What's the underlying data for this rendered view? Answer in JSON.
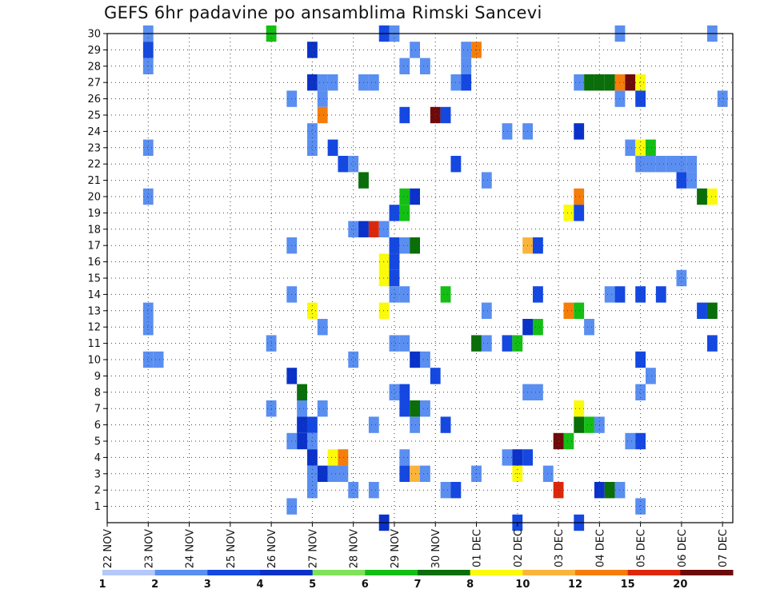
{
  "chart_data": {
    "type": "heatmap",
    "title": "GEFS 6hr padavine po ansamblima Rimski Sancevi",
    "y_ticks": [
      1,
      2,
      3,
      4,
      5,
      6,
      7,
      8,
      9,
      10,
      11,
      12,
      13,
      14,
      15,
      16,
      17,
      18,
      19,
      20,
      21,
      22,
      23,
      24,
      25,
      26,
      27,
      28,
      29,
      30
    ],
    "y_range": [
      0,
      30
    ],
    "x_ticks": [
      "22 NOV",
      "23 NOV",
      "24 NOV",
      "25 NOV",
      "26 NOV",
      "27 NOV",
      "28 NOV",
      "29 NOV",
      "30 NOV",
      "01 DEC",
      "02 DEC",
      "03 DEC",
      "04 DEC",
      "05 DEC",
      "06 DEC",
      "07 DEC"
    ],
    "x_range_days": [
      0,
      15.25
    ],
    "grid": true,
    "colorbar": {
      "labels": [
        "1",
        "2",
        "3",
        "4",
        "5",
        "6",
        "7",
        "8",
        "10",
        "12",
        "15",
        "20"
      ],
      "colors": [
        "#b4c8fa",
        "#5a8ef0",
        "#1448e0",
        "#0a32c8",
        "#7fe35a",
        "#14be14",
        "#0a6e0a",
        "#fafa0a",
        "#fab43c",
        "#f57d0a",
        "#dc280a",
        "#6e0a0a"
      ]
    },
    "cells": [
      [
        1,
        30,
        1
      ],
      [
        4,
        30,
        5
      ],
      [
        6.75,
        30,
        2
      ],
      [
        7,
        30,
        1
      ],
      [
        12.5,
        30,
        1
      ],
      [
        14.75,
        30,
        1
      ],
      [
        1,
        29,
        2
      ],
      [
        5,
        29,
        3
      ],
      [
        7.5,
        29,
        1
      ],
      [
        8.75,
        29,
        1
      ],
      [
        9,
        29,
        9
      ],
      [
        1,
        28,
        1
      ],
      [
        7.25,
        28,
        1
      ],
      [
        7.75,
        28,
        1
      ],
      [
        8.75,
        28,
        1
      ],
      [
        5,
        27,
        3
      ],
      [
        5.25,
        27,
        1
      ],
      [
        5.5,
        27,
        1
      ],
      [
        6.25,
        27,
        1
      ],
      [
        6.5,
        27,
        1
      ],
      [
        8.5,
        27,
        1
      ],
      [
        8.75,
        27,
        2
      ],
      [
        11.5,
        27,
        1
      ],
      [
        11.75,
        27,
        6
      ],
      [
        12,
        27,
        6
      ],
      [
        12.25,
        27,
        6
      ],
      [
        12.5,
        27,
        9
      ],
      [
        12.75,
        27,
        11
      ],
      [
        13,
        27,
        7
      ],
      [
        4.5,
        26,
        1
      ],
      [
        5.25,
        26,
        1
      ],
      [
        12.5,
        26,
        1
      ],
      [
        13,
        26,
        2
      ],
      [
        15,
        26,
        1
      ],
      [
        5.25,
        25,
        9
      ],
      [
        7.25,
        25,
        2
      ],
      [
        8,
        25,
        11
      ],
      [
        8.25,
        25,
        2
      ],
      [
        5,
        24,
        1
      ],
      [
        9.75,
        24,
        1
      ],
      [
        10.25,
        24,
        1
      ],
      [
        11.5,
        24,
        3
      ],
      [
        1,
        23,
        1
      ],
      [
        5,
        23,
        1
      ],
      [
        5.5,
        23,
        2
      ],
      [
        12.75,
        23,
        1
      ],
      [
        13,
        23,
        7
      ],
      [
        13.25,
        23,
        5
      ],
      [
        5.75,
        22,
        2
      ],
      [
        6,
        22,
        1
      ],
      [
        8.5,
        22,
        2
      ],
      [
        13,
        22,
        1
      ],
      [
        13.25,
        22,
        1
      ],
      [
        13.5,
        22,
        1
      ],
      [
        13.75,
        22,
        1
      ],
      [
        14,
        22,
        1
      ],
      [
        14.25,
        22,
        1
      ],
      [
        6.25,
        21,
        6
      ],
      [
        9.25,
        21,
        1
      ],
      [
        14,
        21,
        2
      ],
      [
        14.25,
        21,
        1
      ],
      [
        1,
        20,
        1
      ],
      [
        7.25,
        20,
        5
      ],
      [
        7.5,
        20,
        3
      ],
      [
        11.5,
        20,
        9
      ],
      [
        14.5,
        20,
        6
      ],
      [
        14.75,
        20,
        7
      ],
      [
        7,
        19,
        2
      ],
      [
        7.25,
        19,
        5
      ],
      [
        11.25,
        19,
        7
      ],
      [
        11.5,
        19,
        2
      ],
      [
        6,
        18,
        1
      ],
      [
        6.25,
        18,
        3
      ],
      [
        6.5,
        18,
        10
      ],
      [
        6.75,
        18,
        1
      ],
      [
        4.5,
        17,
        1
      ],
      [
        7,
        17,
        2
      ],
      [
        7.25,
        17,
        1
      ],
      [
        7.5,
        17,
        6
      ],
      [
        10.25,
        17,
        8
      ],
      [
        10.5,
        17,
        2
      ],
      [
        7,
        16,
        2
      ],
      [
        6.75,
        16,
        7
      ],
      [
        6.75,
        15,
        7
      ],
      [
        7,
        15,
        2
      ],
      [
        14,
        15,
        1
      ],
      [
        4.5,
        14,
        1
      ],
      [
        7,
        14,
        1
      ],
      [
        7.25,
        14,
        1
      ],
      [
        8.25,
        14,
        5
      ],
      [
        10.5,
        14,
        2
      ],
      [
        12.25,
        14,
        1
      ],
      [
        12.5,
        14,
        2
      ],
      [
        13,
        14,
        2
      ],
      [
        13.5,
        14,
        2
      ],
      [
        1,
        13,
        1
      ],
      [
        5,
        13,
        7
      ],
      [
        6.75,
        13,
        7
      ],
      [
        9.25,
        13,
        1
      ],
      [
        11.25,
        13,
        9
      ],
      [
        11.5,
        13,
        5
      ],
      [
        14.5,
        13,
        2
      ],
      [
        14.75,
        13,
        6
      ],
      [
        1,
        12,
        1
      ],
      [
        5.25,
        12,
        1
      ],
      [
        10.25,
        12,
        3
      ],
      [
        10.5,
        12,
        5
      ],
      [
        11.75,
        12,
        1
      ],
      [
        4,
        11,
        1
      ],
      [
        7,
        11,
        1
      ],
      [
        7.25,
        11,
        1
      ],
      [
        9,
        11,
        6
      ],
      [
        9.25,
        11,
        1
      ],
      [
        9.75,
        11,
        2
      ],
      [
        10,
        11,
        5
      ],
      [
        14.75,
        11,
        2
      ],
      [
        1,
        10,
        1
      ],
      [
        1.25,
        10,
        1
      ],
      [
        6,
        10,
        1
      ],
      [
        7.5,
        10,
        3
      ],
      [
        7.75,
        10,
        1
      ],
      [
        13,
        10,
        2
      ],
      [
        4.5,
        9,
        3
      ],
      [
        8,
        9,
        2
      ],
      [
        13.25,
        9,
        1
      ],
      [
        4.75,
        8,
        6
      ],
      [
        7,
        8,
        1
      ],
      [
        7.25,
        8,
        2
      ],
      [
        10.25,
        8,
        1
      ],
      [
        10.5,
        8,
        1
      ],
      [
        13,
        8,
        1
      ],
      [
        4,
        7,
        1
      ],
      [
        4.75,
        7,
        1
      ],
      [
        5.25,
        7,
        1
      ],
      [
        7.25,
        7,
        2
      ],
      [
        7.5,
        7,
        6
      ],
      [
        7.75,
        7,
        1
      ],
      [
        11.5,
        7,
        7
      ],
      [
        4.75,
        6,
        3
      ],
      [
        5,
        6,
        2
      ],
      [
        6.5,
        6,
        1
      ],
      [
        7.5,
        6,
        1
      ],
      [
        8.25,
        6,
        2
      ],
      [
        11.5,
        6,
        6
      ],
      [
        11.75,
        6,
        5
      ],
      [
        12,
        6,
        1
      ],
      [
        4.5,
        5,
        1
      ],
      [
        4.75,
        5,
        3
      ],
      [
        5,
        5,
        1
      ],
      [
        11,
        5,
        11
      ],
      [
        11.25,
        5,
        5
      ],
      [
        12.75,
        5,
        1
      ],
      [
        13,
        5,
        2
      ],
      [
        5,
        4,
        3
      ],
      [
        5.5,
        4,
        7
      ],
      [
        5.75,
        4,
        9
      ],
      [
        7.25,
        4,
        1
      ],
      [
        9.75,
        4,
        1
      ],
      [
        10,
        4,
        3
      ],
      [
        10.25,
        4,
        2
      ],
      [
        5,
        3,
        1
      ],
      [
        5.25,
        3,
        3
      ],
      [
        5.5,
        3,
        1
      ],
      [
        5.75,
        3,
        1
      ],
      [
        7.25,
        3,
        2
      ],
      [
        7.5,
        3,
        8
      ],
      [
        7.75,
        3,
        1
      ],
      [
        9,
        3,
        1
      ],
      [
        10,
        3,
        7
      ],
      [
        10.75,
        3,
        1
      ],
      [
        5,
        2,
        1
      ],
      [
        6,
        2,
        1
      ],
      [
        6.5,
        2,
        1
      ],
      [
        8.25,
        2,
        1
      ],
      [
        8.5,
        2,
        2
      ],
      [
        11,
        2,
        10
      ],
      [
        12,
        2,
        3
      ],
      [
        12.25,
        2,
        6
      ],
      [
        12.5,
        2,
        1
      ],
      [
        4.5,
        1,
        1
      ],
      [
        13,
        1,
        1
      ],
      [
        6.75,
        0,
        3
      ],
      [
        10,
        0,
        2
      ],
      [
        11.5,
        0,
        2
      ]
    ]
  }
}
